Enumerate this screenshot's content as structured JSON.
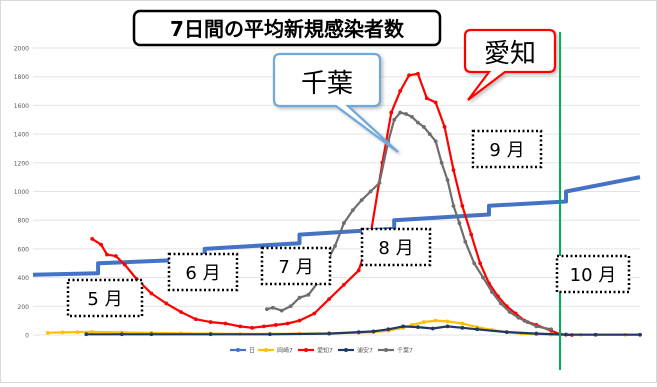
{
  "chart_data": {
    "type": "line",
    "title": "7日間の平均新規感染者数",
    "xlabel": "",
    "ylabel": "",
    "ylim": [
      0,
      2000
    ],
    "yticks": [
      0,
      200,
      400,
      600,
      800,
      1000,
      1200,
      1400,
      1600,
      1800,
      2000
    ],
    "grid": true,
    "legend_position": "bottom",
    "month_labels": [
      "5 月",
      "6 月",
      "7 月",
      "8 月",
      "9 月",
      "10 月"
    ],
    "callouts": [
      "千葉",
      "愛知"
    ],
    "colors": {
      "日": "#4472c4",
      "岡崎7": "#ffc000",
      "愛知7": "#ff0000",
      "浦安7": "#203864",
      "千葉7": "#6e6e6e",
      "marker": "#00b050"
    },
    "series": [
      {
        "name": "日",
        "style": "step",
        "x": [
          0,
          22,
          22,
          58,
          58,
          90,
          90,
          122,
          122,
          154,
          154,
          180,
          180,
          205
        ],
        "values": [
          420,
          430,
          500,
          530,
          600,
          640,
          700,
          740,
          800,
          840,
          900,
          930,
          1000,
          1100
        ]
      },
      {
        "name": "岡崎7",
        "style": "line",
        "x": [
          5,
          10,
          15,
          20,
          30,
          40,
          50,
          60,
          70,
          80,
          90,
          100,
          110,
          115,
          120,
          125,
          128,
          132,
          136,
          140,
          145,
          150,
          155,
          160,
          165,
          170,
          175,
          180,
          185,
          190,
          200,
          205
        ],
        "values": [
          15,
          18,
          20,
          22,
          18,
          15,
          12,
          10,
          8,
          8,
          10,
          12,
          15,
          20,
          30,
          50,
          70,
          90,
          100,
          95,
          80,
          55,
          35,
          20,
          10,
          5,
          3,
          2,
          2,
          2,
          2,
          2
        ]
      },
      {
        "name": "愛知7",
        "style": "line",
        "x": [
          20,
          23,
          25,
          28,
          31,
          35,
          40,
          45,
          50,
          55,
          60,
          65,
          70,
          74,
          78,
          82,
          86,
          90,
          95,
          100,
          105,
          110,
          114,
          118,
          121,
          124,
          127,
          130,
          133,
          136,
          139,
          142,
          145,
          148,
          151,
          154,
          157,
          160,
          163,
          166,
          170,
          175,
          178,
          182
        ],
        "values": [
          670,
          630,
          560,
          550,
          490,
          390,
          290,
          220,
          160,
          110,
          90,
          80,
          60,
          50,
          60,
          70,
          80,
          100,
          150,
          250,
          350,
          450,
          700,
          1200,
          1550,
          1700,
          1810,
          1820,
          1650,
          1620,
          1450,
          1150,
          900,
          700,
          500,
          360,
          270,
          200,
          150,
          100,
          70,
          30,
          5,
          0
        ]
      },
      {
        "name": "浦安7",
        "style": "line",
        "x": [
          18,
          30,
          40,
          60,
          80,
          100,
          110,
          115,
          120,
          125,
          130,
          135,
          140,
          145,
          150,
          160,
          170,
          180,
          190,
          205
        ],
        "values": [
          5,
          5,
          5,
          5,
          5,
          10,
          20,
          25,
          40,
          60,
          55,
          45,
          60,
          50,
          40,
          20,
          10,
          3,
          2,
          2
        ]
      },
      {
        "name": "千葉7",
        "style": "line",
        "x": [
          79,
          81,
          84,
          87,
          90,
          93,
          96,
          99,
          102,
          105,
          108,
          111,
          114,
          117,
          120,
          122,
          124,
          126,
          128,
          130,
          132,
          134,
          136,
          138,
          140,
          142,
          144,
          146,
          149,
          152,
          155,
          158,
          161,
          164,
          167,
          170,
          175
        ],
        "values": [
          180,
          190,
          170,
          200,
          260,
          280,
          360,
          500,
          620,
          780,
          870,
          940,
          1000,
          1060,
          1350,
          1500,
          1550,
          1540,
          1520,
          1480,
          1450,
          1400,
          1350,
          1200,
          1080,
          900,
          780,
          650,
          500,
          400,
          300,
          220,
          160,
          120,
          90,
          60,
          40
        ]
      }
    ]
  }
}
